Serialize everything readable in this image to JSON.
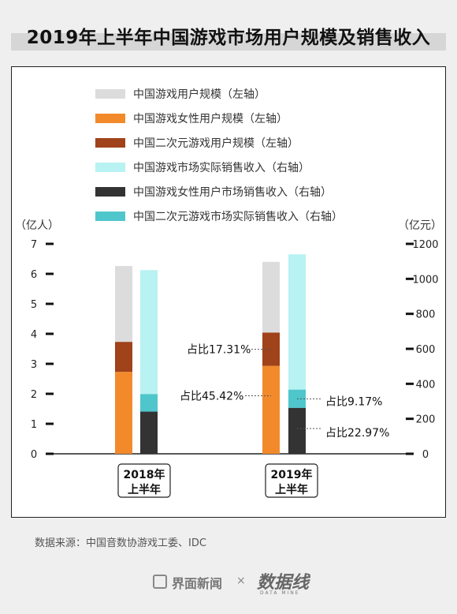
{
  "title": "2019年上半年中国游戏市场用户规模及销售收入",
  "source": "数据来源：中国音数协游戏工委、IDC",
  "footer": {
    "brand": "界面新闻",
    "times": "×",
    "logo": "数据线",
    "logo_sub": "DATA MINE"
  },
  "chart_data": {
    "type": "bar",
    "categories": [
      "2018年上半年",
      "2019年上半年"
    ],
    "left_axis": {
      "unit": "（亿人）",
      "ylim": [
        0,
        7
      ],
      "ticks": [
        "0",
        "1",
        "2",
        "3",
        "4",
        "5",
        "6",
        "7"
      ]
    },
    "right_axis": {
      "unit": "（亿元）",
      "ylim": [
        0,
        1200
      ],
      "ticks": [
        "0",
        "200",
        "400",
        "600",
        "800",
        "1000",
        "1200"
      ]
    },
    "series": [
      {
        "name": "中国游戏用户规模（左轴）",
        "axis": "left",
        "color": "#dcdcdc",
        "values": [
          6.26,
          6.4
        ]
      },
      {
        "name": "中国游戏女性用户规模（左轴）",
        "axis": "left",
        "color": "#f28a2c",
        "values": [
          2.73,
          2.93
        ]
      },
      {
        "name": "中国二次元游戏用户规模（左轴）",
        "axis": "left",
        "color": "#a0421a",
        "values": [
          1.0,
          1.11
        ]
      },
      {
        "name": "中国游戏市场实际销售收入（右轴）",
        "axis": "right",
        "color": "#b8f2f2",
        "values": [
          1050,
          1140.1
        ]
      },
      {
        "name": "中国游戏女性用户市场销售收入（右轴）",
        "axis": "right",
        "color": "#333333",
        "values": [
          241,
          262
        ]
      },
      {
        "name": "中国二次元游戏市场实际销售收入（右轴）",
        "axis": "right",
        "color": "#4fc6cc",
        "values": [
          100,
          104.5
        ]
      }
    ],
    "annotations": [
      "占比17.31%",
      "占比45.42%",
      "占比9.17%",
      "占比22.97%"
    ],
    "grid": false,
    "legend": "top"
  }
}
